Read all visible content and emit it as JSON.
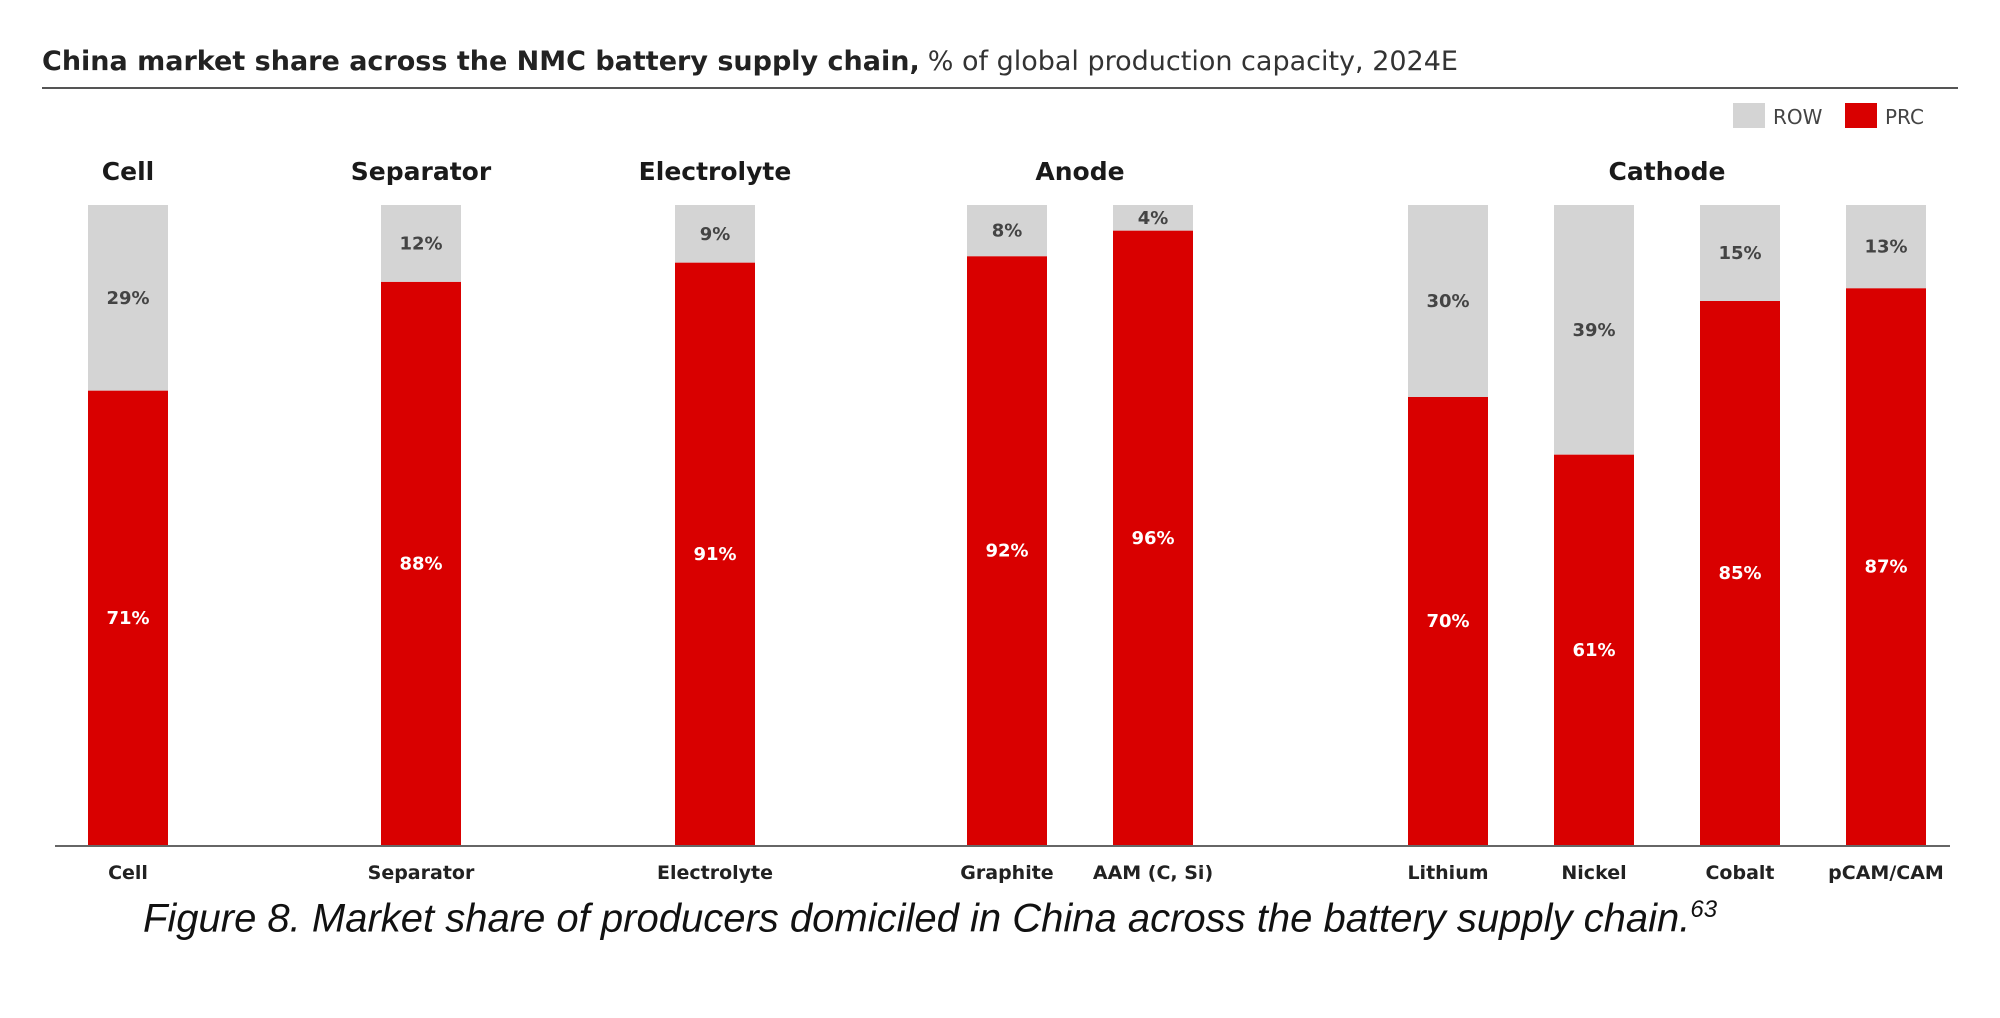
{
  "chart_data": {
    "type": "bar",
    "stacked": true,
    "title": "China market share across the NMC battery supply chain,",
    "subtitle": "% of global production capacity, 2024E",
    "categories": [
      "Cell",
      "Separator",
      "Electrolyte",
      "Graphite",
      "AAM (C, Si)",
      "Lithium",
      "Nickel",
      "Cobalt",
      "pCAM/CAM"
    ],
    "groups": [
      {
        "label": "Cell",
        "categories": [
          "Cell"
        ]
      },
      {
        "label": "Separator",
        "categories": [
          "Separator"
        ]
      },
      {
        "label": "Electrolyte",
        "categories": [
          "Electrolyte"
        ]
      },
      {
        "label": "Anode",
        "categories": [
          "Graphite",
          "AAM (C, Si)"
        ]
      },
      {
        "label": "Cathode",
        "categories": [
          "Lithium",
          "Nickel",
          "Cobalt",
          "pCAM/CAM"
        ]
      }
    ],
    "series": [
      {
        "name": "PRC",
        "color": "#d90000",
        "values": [
          71,
          88,
          91,
          92,
          96,
          70,
          61,
          85,
          87
        ]
      },
      {
        "name": "ROW",
        "color": "#d4d4d4",
        "values": [
          29,
          12,
          9,
          8,
          4,
          30,
          39,
          15,
          13
        ]
      }
    ],
    "data_labels": {
      "PRC": [
        "71%",
        "88%",
        "91%",
        "92%",
        "96%",
        "70%",
        "61%",
        "85%",
        "87%"
      ],
      "ROW": [
        "29%",
        "12%",
        "9%",
        "8%",
        "4%",
        "30%",
        "39%",
        "15%",
        "13%"
      ]
    },
    "legend": {
      "position": "top-right",
      "order": [
        "ROW",
        "PRC"
      ]
    },
    "ylim": [
      0,
      100
    ],
    "grid": false
  },
  "caption": {
    "text": "Figure 8. Market share of producers domiciled in China across the battery supply chain.",
    "superscript": "63"
  }
}
